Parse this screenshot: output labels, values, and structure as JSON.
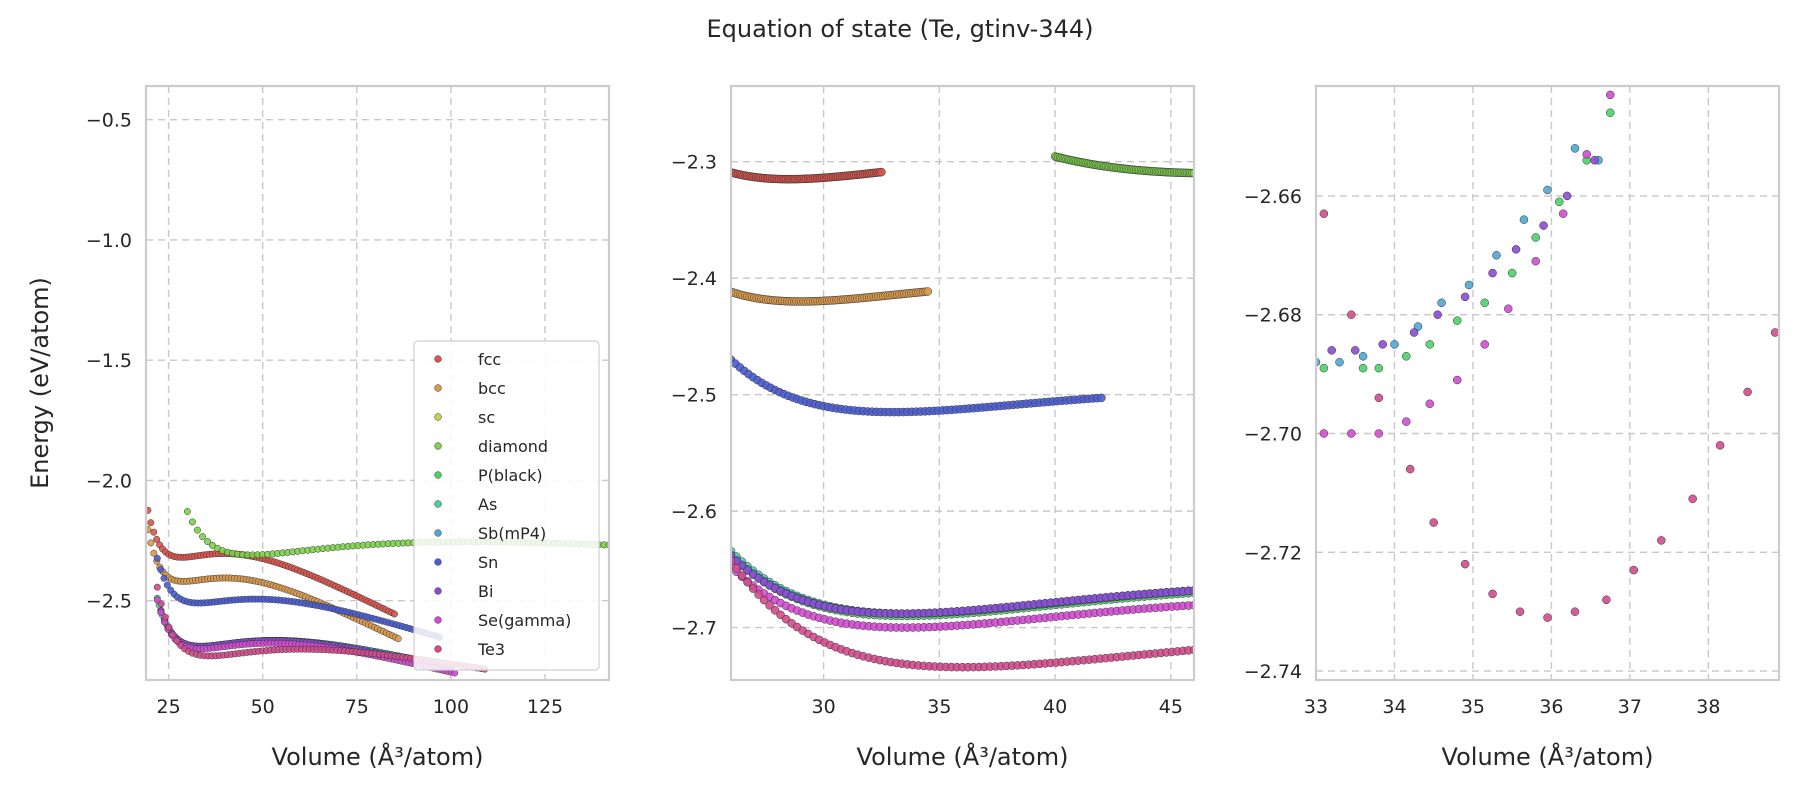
{
  "chart_data": {
    "type": "scatter",
    "title": "Equation of state (Te, gtinv-344)",
    "series_styles": [
      {
        "name": "fcc",
        "color": "#d9544d"
      },
      {
        "name": "bcc",
        "color": "#d99a4d"
      },
      {
        "name": "sc",
        "color": "#c8d14b"
      },
      {
        "name": "diamond",
        "color": "#7dd14b"
      },
      {
        "name": "P(black)",
        "color": "#4bd167"
      },
      {
        "name": "As",
        "color": "#4bd1a8"
      },
      {
        "name": "Sb(mP4)",
        "color": "#4ba8d1"
      },
      {
        "name": "Sn",
        "color": "#4b5dd1"
      },
      {
        "name": "Bi",
        "color": "#8a4bd1"
      },
      {
        "name": "Se(gamma)",
        "color": "#d14bd1"
      },
      {
        "name": "Te3",
        "color": "#d14b8c"
      }
    ],
    "panels": [
      {
        "xlabel": "Volume (Å³/atom)",
        "ylabel": "Energy (eV/atom)",
        "xlim": [
          19,
          142
        ],
        "ylim": [
          -2.83,
          -0.36
        ],
        "xticks": [
          25,
          50,
          75,
          100,
          125
        ],
        "yticks": [
          -2.5,
          -2.0,
          -1.5,
          -1.0,
          -0.5
        ],
        "ytick_labels": [
          "−2.5",
          "−2.0",
          "−1.5",
          "−1.0",
          "−0.5"
        ],
        "grid": true,
        "legend": "lower-right",
        "curves": [
          {
            "name": "fcc",
            "v0": 28.5,
            "e0": -2.32,
            "vmin": 19.5,
            "vmax": 85,
            "n": 85,
            "a": 1.2,
            "b": 3.35
          },
          {
            "name": "bcc",
            "v0": 29,
            "e0": -2.42,
            "vmin": 19.5,
            "vmax": 86,
            "n": 85,
            "a": 1.15,
            "b": 3.45
          },
          {
            "name": "diamond",
            "v0": 47,
            "e0": -2.31,
            "vmin": 30,
            "vmax": 142,
            "n": 85,
            "a": 0.95,
            "b": 1.61
          },
          {
            "name": "Sn",
            "v0": 33,
            "e0": -2.51,
            "vmin": 22,
            "vmax": 97,
            "n": 85,
            "a": 1.0,
            "b": 3.0
          },
          {
            "name": "P(black)",
            "v0": 33.5,
            "e0": -2.69,
            "vmin": 22,
            "vmax": 100,
            "n": 85,
            "a": 1.05,
            "b": 2.52
          },
          {
            "name": "As",
            "v0": 33.5,
            "e0": -2.69,
            "vmin": 22.5,
            "vmax": 100,
            "n": 85,
            "a": 1.05,
            "b": 2.52
          },
          {
            "name": "Sb(mP4)",
            "v0": 33.5,
            "e0": -2.69,
            "vmin": 23,
            "vmax": 100,
            "n": 85,
            "a": 1.05,
            "b": 2.52
          },
          {
            "name": "Bi",
            "v0": 33.5,
            "e0": -2.69,
            "vmin": 23,
            "vmax": 100,
            "n": 85,
            "a": 1.05,
            "b": 2.58
          },
          {
            "name": "Se(gamma)",
            "v0": 33.5,
            "e0": -2.7,
            "vmin": 22,
            "vmax": 101,
            "n": 85,
            "a": 1.05,
            "b": 2.6
          },
          {
            "name": "Te3",
            "v0": 36,
            "e0": -2.73,
            "vmin": 22,
            "vmax": 109,
            "n": 85,
            "a": 1.0,
            "b": 2.3
          }
        ]
      },
      {
        "xlabel": "Volume (Å³/atom)",
        "ylabel": "",
        "xlim": [
          26,
          46
        ],
        "ylim": [
          -2.745,
          -2.235
        ],
        "xticks": [
          30,
          35,
          40,
          45
        ],
        "yticks": [
          -2.7,
          -2.6,
          -2.5,
          -2.4,
          -2.3
        ],
        "ytick_labels": [
          "−2.7",
          "−2.6",
          "−2.5",
          "−2.4",
          "−2.3"
        ],
        "grid": true,
        "legend": "none",
        "curves": [
          {
            "name": "fcc",
            "v0": 28.5,
            "e0": -2.315,
            "vmin": 26,
            "vmax": 32.5,
            "n": 85,
            "a": 1.2,
            "b": 3.35
          },
          {
            "name": "bcc",
            "v0": 29,
            "e0": -2.42,
            "vmin": 26,
            "vmax": 34.5,
            "n": 85,
            "a": 1.15,
            "b": 3.45
          },
          {
            "name": "diamond",
            "v0": 47,
            "e0": -2.31,
            "vmin": 40,
            "vmax": 46,
            "n": 85,
            "a": 0.95,
            "b": 1.61
          },
          {
            "name": "Sn",
            "v0": 33,
            "e0": -2.515,
            "vmin": 26,
            "vmax": 42,
            "n": 85,
            "a": 1.0,
            "b": 3.0
          },
          {
            "name": "P(black)",
            "v0": 33.5,
            "e0": -2.69,
            "vmin": 26,
            "vmax": 46,
            "n": 85,
            "a": 1.05,
            "b": 2.52
          },
          {
            "name": "As",
            "v0": 33.6,
            "e0": -2.688,
            "vmin": 26,
            "vmax": 46,
            "n": 85,
            "a": 1.05,
            "b": 2.52
          },
          {
            "name": "Sb(mP4)",
            "v0": 33.4,
            "e0": -2.688,
            "vmin": 26,
            "vmax": 46,
            "n": 85,
            "a": 1.05,
            "b": 2.52
          },
          {
            "name": "Bi",
            "v0": 33.3,
            "e0": -2.688,
            "vmin": 26,
            "vmax": 46,
            "n": 85,
            "a": 1.05,
            "b": 2.58
          },
          {
            "name": "Se(gamma)",
            "v0": 33.5,
            "e0": -2.7,
            "vmin": 26,
            "vmax": 46,
            "n": 85,
            "a": 1.05,
            "b": 2.6
          },
          {
            "name": "Te3",
            "v0": 36,
            "e0": -2.734,
            "vmin": 26,
            "vmax": 46,
            "n": 85,
            "a": 1.0,
            "b": 2.3
          }
        ]
      },
      {
        "xlabel": "Volume (Å³/atom)",
        "ylabel": "",
        "xlim": [
          33,
          38.9
        ],
        "ylim": [
          -2.7415,
          -2.6415
        ],
        "xticks": [
          33,
          34,
          35,
          36,
          37,
          38
        ],
        "yticks": [
          -2.74,
          -2.72,
          -2.7,
          -2.68,
          -2.66
        ],
        "ytick_labels": [
          "−2.74",
          "−2.72",
          "−2.70",
          "−2.68",
          "−2.66"
        ],
        "grid": true,
        "legend": "none",
        "points": [
          {
            "name": "P(black)",
            "xy": [
              [
                33.1,
                -2.689
              ],
              [
                33.6,
                -2.689
              ],
              [
                33.8,
                -2.689
              ],
              [
                34.15,
                -2.687
              ],
              [
                34.45,
                -2.685
              ],
              [
                34.8,
                -2.681
              ],
              [
                35.15,
                -2.678
              ],
              [
                35.5,
                -2.673
              ],
              [
                35.8,
                -2.667
              ],
              [
                36.1,
                -2.661
              ],
              [
                36.45,
                -2.654
              ],
              [
                36.75,
                -2.646
              ]
            ]
          },
          {
            "name": "Sb(mP4)",
            "xy": [
              [
                33.0,
                -2.688
              ],
              [
                33.3,
                -2.688
              ],
              [
                33.6,
                -2.687
              ],
              [
                34.0,
                -2.685
              ],
              [
                34.3,
                -2.682
              ],
              [
                34.6,
                -2.678
              ],
              [
                34.95,
                -2.675
              ],
              [
                35.3,
                -2.67
              ],
              [
                35.65,
                -2.664
              ],
              [
                35.95,
                -2.659
              ],
              [
                36.3,
                -2.652
              ],
              [
                36.6,
                -2.654
              ]
            ]
          },
          {
            "name": "Bi",
            "xy": [
              [
                33.2,
                -2.686
              ],
              [
                33.5,
                -2.686
              ],
              [
                33.85,
                -2.685
              ],
              [
                34.25,
                -2.683
              ],
              [
                34.55,
                -2.68
              ],
              [
                34.9,
                -2.677
              ],
              [
                35.25,
                -2.673
              ],
              [
                35.55,
                -2.669
              ],
              [
                35.9,
                -2.665
              ],
              [
                36.2,
                -2.66
              ],
              [
                36.55,
                -2.654
              ]
            ]
          },
          {
            "name": "Se(gamma)",
            "xy": [
              [
                33.1,
                -2.7
              ],
              [
                33.45,
                -2.7
              ],
              [
                33.8,
                -2.7
              ],
              [
                34.15,
                -2.698
              ],
              [
                34.45,
                -2.695
              ],
              [
                34.8,
                -2.691
              ],
              [
                35.15,
                -2.685
              ],
              [
                35.45,
                -2.679
              ],
              [
                35.8,
                -2.671
              ],
              [
                36.15,
                -2.663
              ],
              [
                36.45,
                -2.653
              ],
              [
                36.75,
                -2.643
              ]
            ]
          },
          {
            "name": "Te3",
            "xy": [
              [
                33.1,
                -2.663
              ],
              [
                33.45,
                -2.68
              ],
              [
                33.8,
                -2.694
              ],
              [
                34.2,
                -2.706
              ],
              [
                34.5,
                -2.715
              ],
              [
                34.9,
                -2.722
              ],
              [
                35.25,
                -2.727
              ],
              [
                35.6,
                -2.73
              ],
              [
                35.95,
                -2.731
              ],
              [
                36.3,
                -2.73
              ],
              [
                36.7,
                -2.728
              ],
              [
                37.05,
                -2.723
              ],
              [
                37.4,
                -2.718
              ],
              [
                37.8,
                -2.711
              ],
              [
                38.15,
                -2.702
              ],
              [
                38.5,
                -2.693
              ],
              [
                38.85,
                -2.683
              ]
            ]
          }
        ]
      }
    ]
  }
}
